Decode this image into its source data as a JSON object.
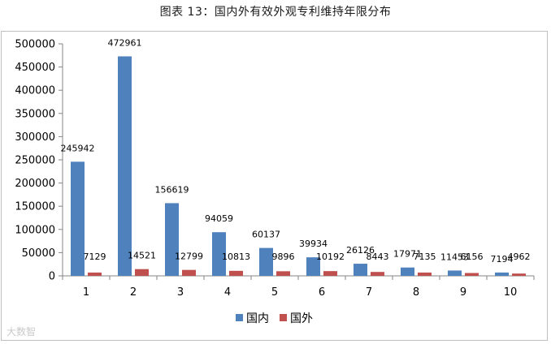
{
  "title": "图表 13：国内外有效外观专利维持年限分布",
  "watermark": "大数智",
  "chart_data": {
    "type": "bar",
    "categories": [
      "1",
      "2",
      "3",
      "4",
      "5",
      "6",
      "7",
      "8",
      "9",
      "10"
    ],
    "series": [
      {
        "name": "国内",
        "color": "#4f81bd",
        "values": [
          245942,
          472961,
          156619,
          94059,
          60137,
          39934,
          26126,
          17971,
          11453,
          7194
        ]
      },
      {
        "name": "国外",
        "color": "#c0504d",
        "values": [
          7129,
          14521,
          12799,
          10813,
          9896,
          10192,
          8443,
          7135,
          6156,
          4962
        ]
      }
    ],
    "yticks": [
      "0",
      "50000",
      "100000",
      "150000",
      "200000",
      "250000",
      "300000",
      "350000",
      "400000",
      "450000",
      "500000"
    ],
    "ylim": [
      0,
      500000
    ],
    "legend_position": "bottom",
    "grid": false
  }
}
